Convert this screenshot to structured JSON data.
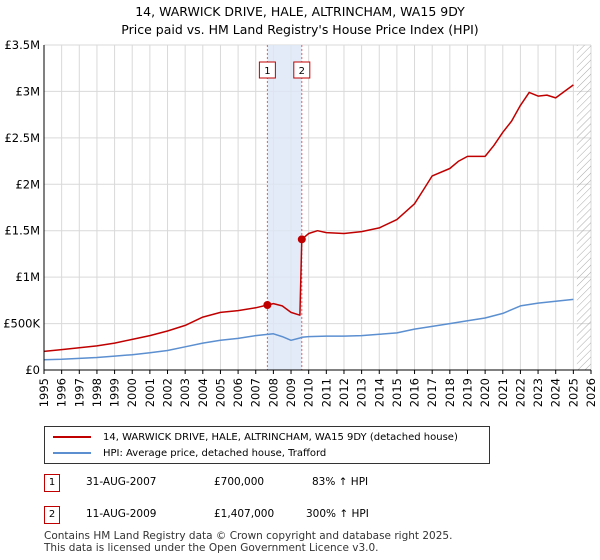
{
  "header": {
    "title": "14, WARWICK DRIVE, HALE, ALTRINCHAM, WA15 9DY",
    "subtitle": "Price paid vs. HM Land Registry's House Price Index (HPI)"
  },
  "chart_data": {
    "type": "line",
    "ylim": [
      0,
      3500000
    ],
    "xlim": [
      1995,
      2026
    ],
    "y_ticks": [
      {
        "value": 0,
        "label": "£0"
      },
      {
        "value": 500000,
        "label": "£500K"
      },
      {
        "value": 1000000,
        "label": "£1M"
      },
      {
        "value": 1500000,
        "label": "£1.5M"
      },
      {
        "value": 2000000,
        "label": "£2M"
      },
      {
        "value": 2500000,
        "label": "£2.5M"
      },
      {
        "value": 3000000,
        "label": "£3M"
      },
      {
        "value": 3500000,
        "label": "£3.5M"
      }
    ],
    "x_ticks": [
      "1995",
      "1996",
      "1997",
      "1998",
      "1999",
      "2000",
      "2001",
      "2002",
      "2003",
      "2004",
      "2005",
      "2006",
      "2007",
      "2008",
      "2009",
      "2010",
      "2011",
      "2012",
      "2013",
      "2014",
      "2015",
      "2016",
      "2017",
      "2018",
      "2019",
      "2020",
      "2021",
      "2022",
      "2023",
      "2024",
      "2025",
      "2026"
    ],
    "grid": true,
    "shaded_period": [
      2007.66,
      2009.61
    ],
    "hatched_from": 2025.2,
    "series": [
      {
        "name": "14, WARWICK DRIVE, HALE, ALTRINCHAM, WA15 9DY (detached house)",
        "color": "#c00000",
        "x": [
          1995,
          1996,
          1997,
          1998,
          1999,
          2000,
          2001,
          2002,
          2003,
          2004,
          2005,
          2006,
          2007,
          2007.66,
          2008,
          2008.5,
          2009,
          2009.5,
          2009.61,
          2010,
          2010.5,
          2011,
          2012,
          2013,
          2014,
          2015,
          2016,
          2016.5,
          2017,
          2018,
          2018.5,
          2019,
          2020,
          2020.5,
          2021,
          2021.5,
          2022,
          2022.5,
          2023,
          2023.5,
          2024,
          2024.5,
          2025
        ],
        "values": [
          200000,
          220000,
          240000,
          260000,
          290000,
          330000,
          370000,
          420000,
          480000,
          570000,
          620000,
          640000,
          670000,
          700000,
          715000,
          690000,
          620000,
          590000,
          1407000,
          1470000,
          1500000,
          1480000,
          1470000,
          1490000,
          1530000,
          1620000,
          1790000,
          1940000,
          2090000,
          2170000,
          2250000,
          2300000,
          2300000,
          2420000,
          2560000,
          2680000,
          2850000,
          2990000,
          2950000,
          2960000,
          2930000,
          3000000,
          3070000
        ]
      },
      {
        "name": "HPI: Average price, detached house, Trafford",
        "color": "#5b8fd0",
        "x": [
          1995,
          1996,
          1997,
          1998,
          1999,
          2000,
          2001,
          2002,
          2003,
          2004,
          2005,
          2006,
          2007,
          2007.66,
          2008,
          2008.5,
          2009,
          2009.5,
          2009.61,
          2010,
          2011,
          2012,
          2013,
          2014,
          2015,
          2016,
          2017,
          2018,
          2019,
          2020,
          2021,
          2022,
          2023,
          2024,
          2025
        ],
        "values": [
          110000,
          115000,
          125000,
          135000,
          150000,
          165000,
          185000,
          210000,
          250000,
          290000,
          320000,
          340000,
          370000,
          383000,
          390000,
          360000,
          320000,
          345000,
          352000,
          360000,
          365000,
          365000,
          370000,
          385000,
          400000,
          440000,
          470000,
          500000,
          530000,
          560000,
          610000,
          690000,
          720000,
          740000,
          760000
        ]
      }
    ],
    "annotations": [
      {
        "label": "1",
        "x": 2007.66,
        "value": 700000,
        "date": "31-AUG-2007",
        "price": "£700,000",
        "hpi": "83% ↑ HPI"
      },
      {
        "label": "2",
        "x": 2009.61,
        "value": 1407000,
        "date": "11-AUG-2009",
        "price": "£1,407,000",
        "hpi": "300% ↑ HPI"
      }
    ]
  },
  "legend": {
    "items": [
      {
        "label": "14, WARWICK DRIVE, HALE, ALTRINCHAM, WA15 9DY (detached house)",
        "color": "#c00000"
      },
      {
        "label": "HPI: Average price, detached house, Trafford",
        "color": "#5b8fd0"
      }
    ]
  },
  "footer": {
    "line1": "Contains HM Land Registry data © Crown copyright and database right 2025.",
    "line2": "This data is licensed under the Open Government Licence v3.0."
  }
}
